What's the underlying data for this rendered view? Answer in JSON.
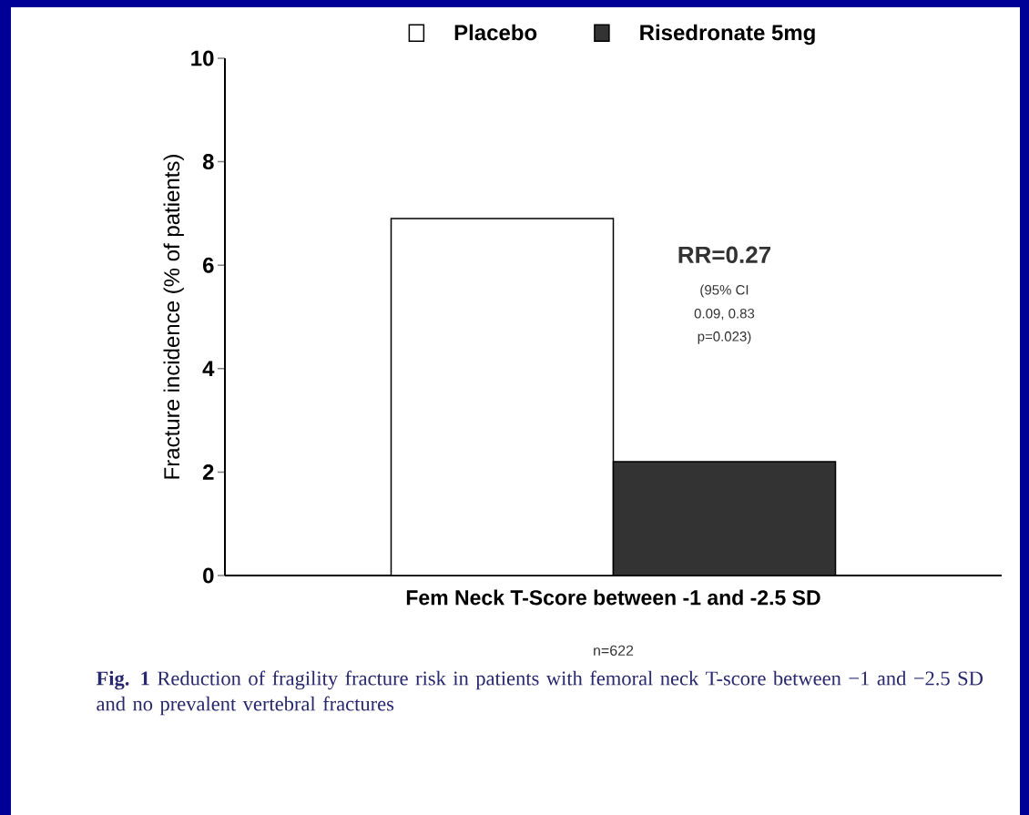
{
  "chart_data": {
    "type": "bar",
    "categories": [
      "Fem Neck T-Score between -1 and -2.5 SD"
    ],
    "series": [
      {
        "name": "Placebo",
        "color": "#ffffff",
        "values": [
          6.9
        ]
      },
      {
        "name": "Risedronate 5mg",
        "color": "#333333",
        "values": [
          2.2
        ]
      }
    ],
    "ylabel": "Fracture incidence (% of patients)",
    "ylim": [
      0,
      10
    ],
    "yticks": [
      0,
      2,
      4,
      6,
      8,
      10
    ],
    "grid": false,
    "legend": "top",
    "annotations": [
      "RR=0.27",
      "(95% CI",
      "0.09, 0.83",
      "p=0.023)",
      "n=622",
      "**Fig. 1** Reduction of fragility fracture risk in patients with femoral neck T-score between −1 and −2.5 SD and no prevalent vertebral fractures"
    ]
  }
}
